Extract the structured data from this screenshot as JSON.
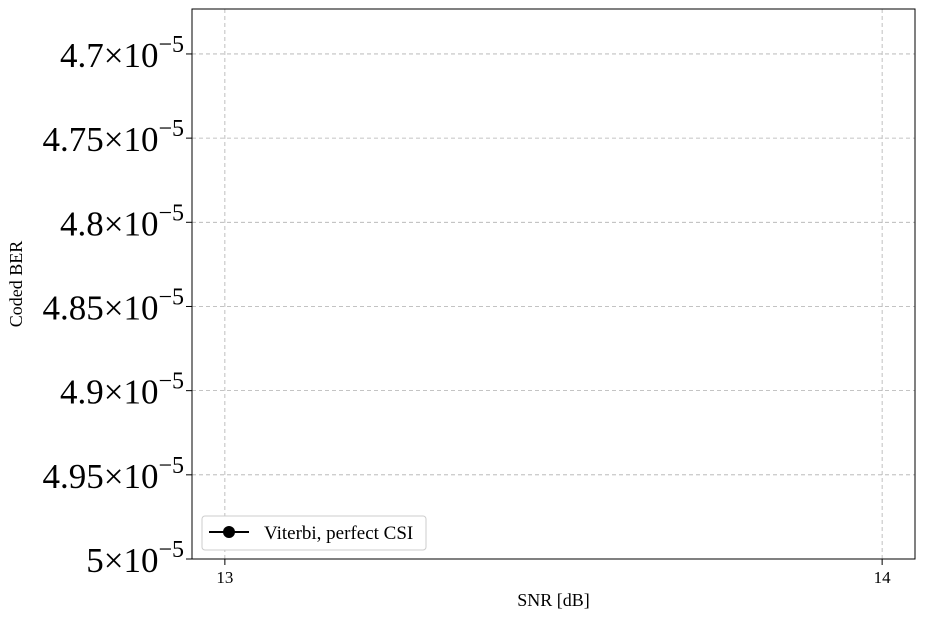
{
  "chart_data": {
    "type": "line",
    "title": "",
    "xlabel": "SNR [dB]",
    "ylabel": "Coded BER",
    "xlim": [
      12.95,
      14.05
    ],
    "ylim": [
      4.6733e-05,
      5e-05
    ],
    "y_inverted": true,
    "grid": true,
    "x_ticks": [
      {
        "value": 13,
        "label": "13"
      },
      {
        "value": 14,
        "label": "14"
      }
    ],
    "y_ticks": [
      {
        "value": 4.7e-05,
        "mantissa": "4.7",
        "base": "10",
        "exp": "−5"
      },
      {
        "value": 4.75e-05,
        "mantissa": "4.75",
        "base": "10",
        "exp": "−5"
      },
      {
        "value": 4.8e-05,
        "mantissa": "4.8",
        "base": "10",
        "exp": "−5"
      },
      {
        "value": 4.85e-05,
        "mantissa": "4.85",
        "base": "10",
        "exp": "−5"
      },
      {
        "value": 4.9e-05,
        "mantissa": "4.9",
        "base": "10",
        "exp": "−5"
      },
      {
        "value": 4.95e-05,
        "mantissa": "4.95",
        "base": "10",
        "exp": "−5"
      },
      {
        "value": 5e-05,
        "mantissa": "5",
        "base": "10",
        "exp": "−5"
      }
    ],
    "times_symbol": "×",
    "legend_position": "lower-left",
    "series": [
      {
        "name": "Viterbi, perfect CSI",
        "color": "#000000",
        "marker": "circle",
        "x": [],
        "y": []
      }
    ]
  }
}
